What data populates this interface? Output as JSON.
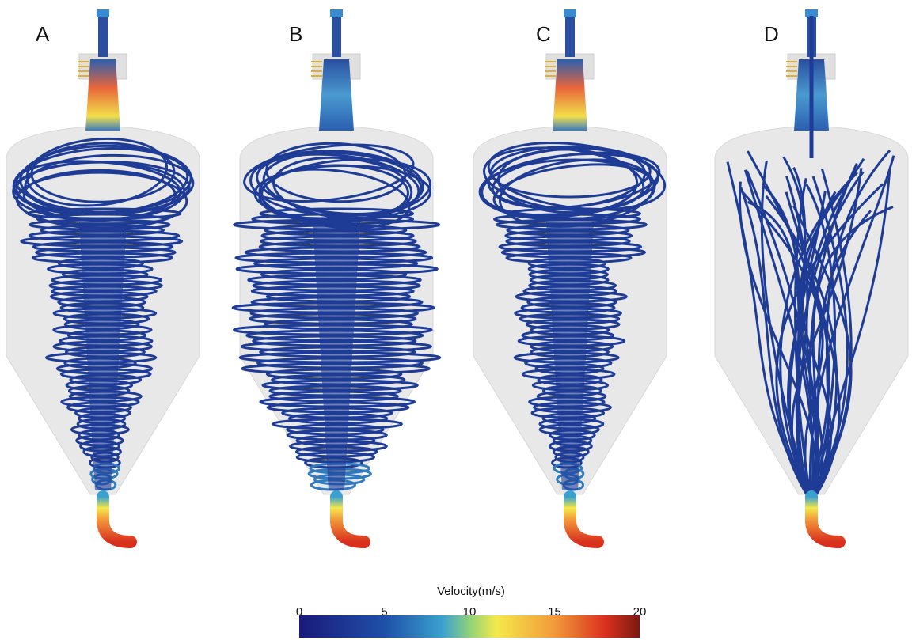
{
  "panels": [
    {
      "label": "A"
    },
    {
      "label": "B"
    },
    {
      "label": "C"
    },
    {
      "label": "D"
    }
  ],
  "colorbar": {
    "title": "Velocity(m/s)",
    "lim": [
      0,
      20
    ],
    "ticks": [
      0,
      5,
      10,
      15,
      20
    ]
  }
}
